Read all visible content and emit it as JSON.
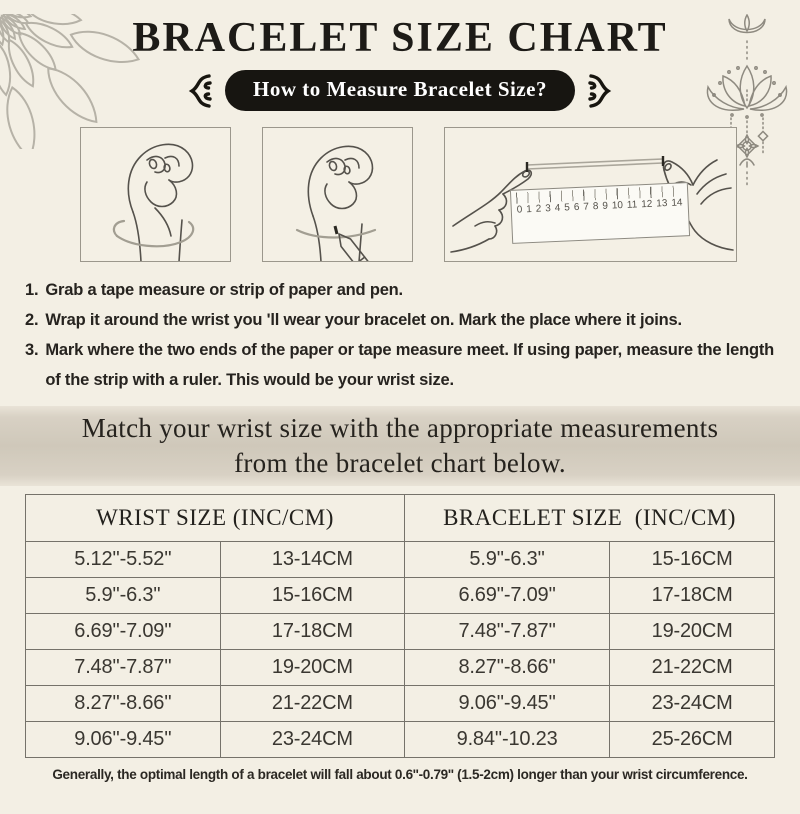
{
  "page": {
    "title": "BRACELET SIZE CHART",
    "pill_label": "How to Measure Bracelet Size?"
  },
  "instructions": [
    {
      "num": "1.",
      "text": "Grab a tape measure or strip of paper and pen."
    },
    {
      "num": "2.",
      "text": "Wrap it around the wrist you 'll wear your bracelet on. Mark the place where it joins."
    },
    {
      "num": "3.",
      "text": "Mark where the two ends of the paper or tape measure meet. If using paper, measure the length of the strip with a ruler. This would be your wrist size."
    }
  ],
  "banner": {
    "line1": "Match your wrist size with the appropriate measurements",
    "line2": "from the bracelet chart below."
  },
  "size_table": {
    "col_headers": [
      "WRIST SIZE (INC/CM)",
      "BRACELET SIZE  (INC/CM)"
    ],
    "rows": [
      [
        "5.12''-5.52''",
        "13-14CM",
        "5.9''-6.3''",
        "15-16CM"
      ],
      [
        "5.9''-6.3''",
        "15-16CM",
        "6.69''-7.09''",
        "17-18CM"
      ],
      [
        "6.69''-7.09''",
        "17-18CM",
        "7.48''-7.87''",
        "19-20CM"
      ],
      [
        "7.48''-7.87''",
        "19-20CM",
        "8.27''-8.66''",
        "21-22CM"
      ],
      [
        "8.27''-8.66''",
        "21-22CM",
        "9.06''-9.45''",
        "23-24CM"
      ],
      [
        "9.06''-9.45''",
        "23-24CM",
        "9.84''-10.23",
        "25-26CM"
      ]
    ]
  },
  "footer_note": "Generally, the optimal length of a bracelet will fall about 0.6''-0.79'' (1.5-2cm) longer than your wrist circumference.",
  "ruler": {
    "numbers": [
      "0",
      "1",
      "2",
      "3",
      "4",
      "5",
      "6",
      "7",
      "8",
      "9",
      "10",
      "11",
      "12",
      "13",
      "14"
    ]
  },
  "colors": {
    "background": "#f3efe4",
    "pill_bg": "#171511",
    "pill_text": "#ffffff",
    "banner_bg": "#d2cbbd",
    "text": "#26231f",
    "table_border": "#75726a",
    "line_art": "#55524c",
    "ornament_gray": "#b6b2a7",
    "tape_gray": "#a29e92"
  }
}
